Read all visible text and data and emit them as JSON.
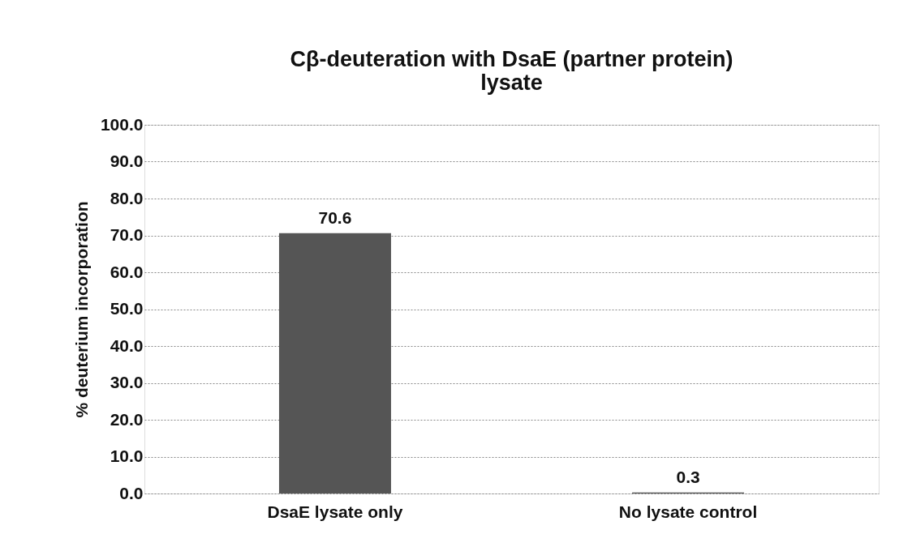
{
  "chart_data": {
    "type": "bar",
    "title": "Cβ-deuteration with DsaE (partner protein) lysate",
    "ylabel": "% deuterium incorporation",
    "categories": [
      "DsaE lysate only",
      "No lysate control"
    ],
    "values": [
      70.6,
      0.3
    ],
    "color": "#555555",
    "ylim": [
      0,
      100
    ],
    "yticks": [
      {
        "value": 0,
        "label": "0.0"
      },
      {
        "value": 10,
        "label": "10.0"
      },
      {
        "value": 20,
        "label": "20.0"
      },
      {
        "value": 30,
        "label": "30.0"
      },
      {
        "value": 40,
        "label": "40.0"
      },
      {
        "value": 50,
        "label": "50.0"
      },
      {
        "value": 60,
        "label": "60.0"
      },
      {
        "value": 70,
        "label": "70.0"
      },
      {
        "value": 80,
        "label": "80.0"
      },
      {
        "value": 90,
        "label": "90.0"
      },
      {
        "value": 100,
        "label": "100.0"
      }
    ],
    "grid": "y",
    "data_labels": true,
    "legend": false
  }
}
